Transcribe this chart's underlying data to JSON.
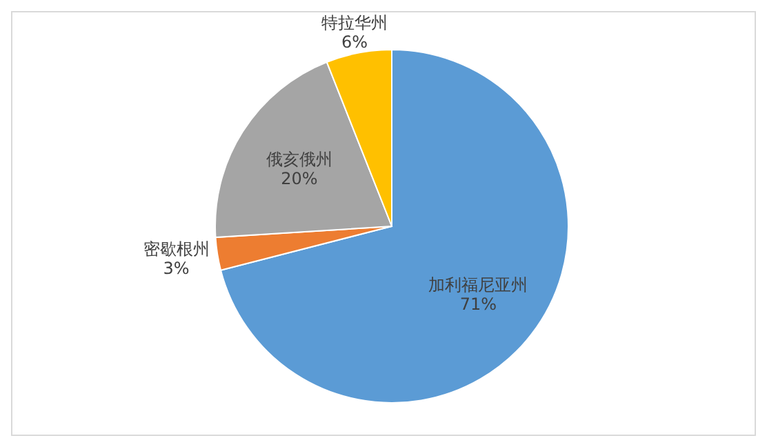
{
  "chart_data": {
    "type": "pie",
    "categories": [
      "加利福尼亚州",
      "密歇根州",
      "俄亥俄州",
      "特拉华州"
    ],
    "values": [
      71,
      3,
      20,
      6
    ],
    "colors": [
      "#5b9bd5",
      "#ed7d31",
      "#a5a5a5",
      "#ffc000"
    ],
    "value_labels": [
      "71%",
      "3%",
      "20%",
      "6%"
    ],
    "legend": false
  }
}
